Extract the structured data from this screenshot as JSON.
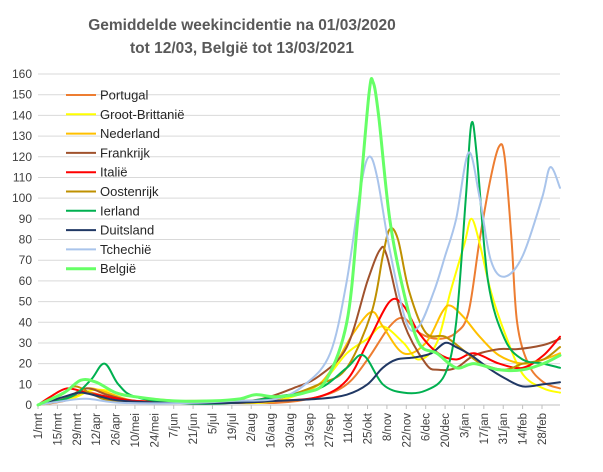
{
  "chart_data": {
    "type": "line",
    "title_line1": "Gemiddelde weekincidentie  na 01/03/2020",
    "title_line2": "tot 12/03, België tot 13/03/2021",
    "xlabel": "",
    "ylabel": "",
    "ylim": [
      0,
      160
    ],
    "y_ticks": [
      0,
      10,
      20,
      30,
      40,
      50,
      60,
      70,
      80,
      90,
      100,
      110,
      120,
      130,
      140,
      150,
      160
    ],
    "x_range": [
      "2020-03-01",
      "2021-03-13"
    ],
    "x_tick_dates": [
      "2020-03-01",
      "2020-03-15",
      "2020-03-29",
      "2020-04-12",
      "2020-04-26",
      "2020-05-10",
      "2020-05-24",
      "2020-06-07",
      "2020-06-21",
      "2020-07-05",
      "2020-07-19",
      "2020-08-02",
      "2020-08-16",
      "2020-08-30",
      "2020-09-13",
      "2020-09-27",
      "2020-10-11",
      "2020-10-25",
      "2020-11-08",
      "2020-11-22",
      "2020-12-06",
      "2020-12-20",
      "2021-01-03",
      "2021-01-17",
      "2021-01-31",
      "2021-02-14",
      "2021-02-28"
    ],
    "x_tick_labels": [
      "1/mrt",
      "15/mrt",
      "29/mrt",
      "12/apr",
      "26/apr",
      "10/mei",
      "24/mei",
      "7/jun",
      "21/jun",
      "5/jul",
      "19/jul",
      "2/aug",
      "16/aug",
      "30/aug",
      "13/sep",
      "27/sep",
      "11/okt",
      "25/okt",
      "8/nov",
      "22/nov",
      "6/dec",
      "20/dec",
      "3/jan",
      "17/jan",
      "31/jan",
      "14/feb",
      "28/feb"
    ],
    "grid": true,
    "legend_position": "top-left",
    "series": [
      {
        "name": "Portugal",
        "color": "#ED7D31",
        "points": [
          [
            "2020-03-01",
            0
          ],
          [
            "2020-03-20",
            2
          ],
          [
            "2020-04-05",
            6
          ],
          [
            "2020-04-20",
            4
          ],
          [
            "2020-05-10",
            2
          ],
          [
            "2020-06-20",
            2
          ],
          [
            "2020-07-15",
            2
          ],
          [
            "2020-08-20",
            1
          ],
          [
            "2020-09-20",
            4
          ],
          [
            "2020-10-10",
            10
          ],
          [
            "2020-10-25",
            22
          ],
          [
            "2020-11-10",
            38
          ],
          [
            "2020-11-20",
            42
          ],
          [
            "2020-12-01",
            35
          ],
          [
            "2020-12-15",
            32
          ],
          [
            "2020-12-28",
            35
          ],
          [
            "2021-01-06",
            45
          ],
          [
            "2021-01-14",
            80
          ],
          [
            "2021-01-22",
            110
          ],
          [
            "2021-01-28",
            125
          ],
          [
            "2021-02-01",
            120
          ],
          [
            "2021-02-06",
            80
          ],
          [
            "2021-02-10",
            40
          ],
          [
            "2021-02-18",
            20
          ],
          [
            "2021-03-01",
            11
          ],
          [
            "2021-03-13",
            8
          ]
        ]
      },
      {
        "name": "Groot-Brittanië",
        "color": "#FFFF00",
        "points": [
          [
            "2020-03-01",
            0
          ],
          [
            "2020-03-25",
            3
          ],
          [
            "2020-04-08",
            7
          ],
          [
            "2020-04-20",
            7
          ],
          [
            "2020-05-10",
            4
          ],
          [
            "2020-06-10",
            2
          ],
          [
            "2020-07-15",
            1
          ],
          [
            "2020-08-20",
            2
          ],
          [
            "2020-09-20",
            10
          ],
          [
            "2020-10-10",
            25
          ],
          [
            "2020-10-25",
            32
          ],
          [
            "2020-11-05",
            38
          ],
          [
            "2020-11-20",
            30
          ],
          [
            "2020-12-01",
            22
          ],
          [
            "2020-12-14",
            30
          ],
          [
            "2020-12-24",
            55
          ],
          [
            "2021-01-03",
            78
          ],
          [
            "2021-01-08",
            90
          ],
          [
            "2021-01-14",
            78
          ],
          [
            "2021-01-22",
            55
          ],
          [
            "2021-02-01",
            35
          ],
          [
            "2021-02-14",
            15
          ],
          [
            "2021-03-01",
            8
          ],
          [
            "2021-03-13",
            6
          ]
        ]
      },
      {
        "name": "Nederland",
        "color": "#FFC000",
        "points": [
          [
            "2020-03-01",
            0
          ],
          [
            "2020-03-20",
            3
          ],
          [
            "2020-04-05",
            8
          ],
          [
            "2020-04-20",
            6
          ],
          [
            "2020-05-10",
            2
          ],
          [
            "2020-06-20",
            1
          ],
          [
            "2020-07-20",
            1
          ],
          [
            "2020-08-15",
            3
          ],
          [
            "2020-09-15",
            8
          ],
          [
            "2020-09-30",
            18
          ],
          [
            "2020-10-15",
            35
          ],
          [
            "2020-10-28",
            45
          ],
          [
            "2020-11-05",
            38
          ],
          [
            "2020-11-20",
            25
          ],
          [
            "2020-12-06",
            30
          ],
          [
            "2020-12-18",
            45
          ],
          [
            "2020-12-24",
            48
          ],
          [
            "2021-01-03",
            42
          ],
          [
            "2021-01-14",
            33
          ],
          [
            "2021-01-28",
            24
          ],
          [
            "2021-02-14",
            20
          ],
          [
            "2021-03-01",
            22
          ],
          [
            "2021-03-13",
            25
          ]
        ]
      },
      {
        "name": "Frankrijk",
        "color": "#A0522D",
        "points": [
          [
            "2020-03-01",
            0
          ],
          [
            "2020-03-20",
            3
          ],
          [
            "2020-04-05",
            8
          ],
          [
            "2020-04-20",
            5
          ],
          [
            "2020-05-10",
            2
          ],
          [
            "2020-06-20",
            1
          ],
          [
            "2020-07-15",
            1
          ],
          [
            "2020-08-10",
            3
          ],
          [
            "2020-09-01",
            8
          ],
          [
            "2020-09-20",
            14
          ],
          [
            "2020-10-10",
            28
          ],
          [
            "2020-10-25",
            60
          ],
          [
            "2020-11-03",
            75
          ],
          [
            "2020-11-08",
            72
          ],
          [
            "2020-11-20",
            40
          ],
          [
            "2020-12-06",
            20
          ],
          [
            "2020-12-15",
            17
          ],
          [
            "2020-12-28",
            18
          ],
          [
            "2021-01-10",
            24
          ],
          [
            "2021-01-28",
            27
          ],
          [
            "2021-02-10",
            27
          ],
          [
            "2021-03-01",
            29
          ],
          [
            "2021-03-13",
            32
          ]
        ]
      },
      {
        "name": "Italië",
        "color": "#FF0000",
        "points": [
          [
            "2020-03-01",
            0
          ],
          [
            "2020-03-10",
            4
          ],
          [
            "2020-03-22",
            8
          ],
          [
            "2020-04-05",
            6
          ],
          [
            "2020-04-20",
            4
          ],
          [
            "2020-05-10",
            2
          ],
          [
            "2020-06-20",
            1
          ],
          [
            "2020-07-20",
            1
          ],
          [
            "2020-08-20",
            2
          ],
          [
            "2020-09-20",
            4
          ],
          [
            "2020-10-10",
            12
          ],
          [
            "2020-10-25",
            30
          ],
          [
            "2020-11-10",
            50
          ],
          [
            "2020-11-20",
            48
          ],
          [
            "2020-12-01",
            35
          ],
          [
            "2020-12-15",
            25
          ],
          [
            "2020-12-28",
            22
          ],
          [
            "2021-01-10",
            25
          ],
          [
            "2021-01-28",
            20
          ],
          [
            "2021-02-14",
            18
          ],
          [
            "2021-03-01",
            24
          ],
          [
            "2021-03-13",
            33
          ]
        ]
      },
      {
        "name": "Oostenrijk",
        "color": "#BF9000",
        "points": [
          [
            "2020-03-01",
            0
          ],
          [
            "2020-03-18",
            5
          ],
          [
            "2020-03-28",
            9
          ],
          [
            "2020-04-10",
            5
          ],
          [
            "2020-04-25",
            2
          ],
          [
            "2020-06-10",
            1
          ],
          [
            "2020-07-20",
            2
          ],
          [
            "2020-08-20",
            3
          ],
          [
            "2020-09-20",
            10
          ],
          [
            "2020-10-10",
            18
          ],
          [
            "2020-10-28",
            45
          ],
          [
            "2020-11-05",
            72
          ],
          [
            "2020-11-10",
            85
          ],
          [
            "2020-11-16",
            80
          ],
          [
            "2020-11-24",
            55
          ],
          [
            "2020-12-06",
            35
          ],
          [
            "2020-12-20",
            33
          ],
          [
            "2021-01-03",
            26
          ],
          [
            "2021-01-15",
            20
          ],
          [
            "2021-02-01",
            17
          ],
          [
            "2021-02-14",
            20
          ],
          [
            "2021-03-01",
            22
          ],
          [
            "2021-03-13",
            28
          ]
        ]
      },
      {
        "name": "Ierland",
        "color": "#00B050",
        "points": [
          [
            "2020-03-01",
            0
          ],
          [
            "2020-03-25",
            4
          ],
          [
            "2020-04-08",
            12
          ],
          [
            "2020-04-18",
            20
          ],
          [
            "2020-04-28",
            10
          ],
          [
            "2020-05-10",
            4
          ],
          [
            "2020-06-10",
            1
          ],
          [
            "2020-07-20",
            1
          ],
          [
            "2020-08-20",
            4
          ],
          [
            "2020-09-20",
            8
          ],
          [
            "2020-10-10",
            18
          ],
          [
            "2020-10-22",
            24
          ],
          [
            "2020-11-05",
            10
          ],
          [
            "2020-11-20",
            6
          ],
          [
            "2020-12-06",
            7
          ],
          [
            "2020-12-20",
            15
          ],
          [
            "2020-12-28",
            40
          ],
          [
            "2021-01-04",
            100
          ],
          [
            "2021-01-08",
            136
          ],
          [
            "2021-01-12",
            120
          ],
          [
            "2021-01-20",
            60
          ],
          [
            "2021-02-01",
            32
          ],
          [
            "2021-02-14",
            22
          ],
          [
            "2021-03-01",
            20
          ],
          [
            "2021-03-13",
            18
          ]
        ]
      },
      {
        "name": "Duitsland",
        "color": "#203864",
        "points": [
          [
            "2020-03-01",
            0
          ],
          [
            "2020-03-20",
            4
          ],
          [
            "2020-04-01",
            6
          ],
          [
            "2020-04-15",
            4
          ],
          [
            "2020-05-01",
            2
          ],
          [
            "2020-06-10",
            1
          ],
          [
            "2020-07-20",
            1
          ],
          [
            "2020-08-20",
            2
          ],
          [
            "2020-09-20",
            3
          ],
          [
            "2020-10-10",
            5
          ],
          [
            "2020-10-25",
            10
          ],
          [
            "2020-11-05",
            18
          ],
          [
            "2020-11-15",
            22
          ],
          [
            "2020-11-28",
            23
          ],
          [
            "2020-12-10",
            25
          ],
          [
            "2020-12-20",
            30
          ],
          [
            "2020-12-28",
            28
          ],
          [
            "2021-01-08",
            24
          ],
          [
            "2021-01-20",
            18
          ],
          [
            "2021-02-01",
            13
          ],
          [
            "2021-02-14",
            9
          ],
          [
            "2021-03-01",
            10
          ],
          [
            "2021-03-13",
            11
          ]
        ]
      },
      {
        "name": "Tchechië",
        "color": "#A9C4EB",
        "points": [
          [
            "2020-03-01",
            0
          ],
          [
            "2020-03-20",
            2
          ],
          [
            "2020-04-05",
            3
          ],
          [
            "2020-05-01",
            1
          ],
          [
            "2020-06-20",
            1
          ],
          [
            "2020-07-20",
            2
          ],
          [
            "2020-08-20",
            3
          ],
          [
            "2020-09-10",
            10
          ],
          [
            "2020-09-28",
            25
          ],
          [
            "2020-10-10",
            60
          ],
          [
            "2020-10-20",
            105
          ],
          [
            "2020-10-26",
            120
          ],
          [
            "2020-11-01",
            110
          ],
          [
            "2020-11-10",
            75
          ],
          [
            "2020-11-22",
            40
          ],
          [
            "2020-12-01",
            38
          ],
          [
            "2020-12-12",
            55
          ],
          [
            "2020-12-20",
            72
          ],
          [
            "2020-12-28",
            90
          ],
          [
            "2021-01-06",
            122
          ],
          [
            "2021-01-14",
            100
          ],
          [
            "2021-01-22",
            70
          ],
          [
            "2021-02-01",
            62
          ],
          [
            "2021-02-14",
            72
          ],
          [
            "2021-02-28",
            100
          ],
          [
            "2021-03-06",
            115
          ],
          [
            "2021-03-13",
            105
          ]
        ]
      },
      {
        "name": "België",
        "color": "#66FF66",
        "points": [
          [
            "2020-03-01",
            0
          ],
          [
            "2020-03-20",
            6
          ],
          [
            "2020-04-01",
            12
          ],
          [
            "2020-04-12",
            11
          ],
          [
            "2020-04-26",
            6
          ],
          [
            "2020-05-10",
            4
          ],
          [
            "2020-06-07",
            2
          ],
          [
            "2020-07-05",
            2
          ],
          [
            "2020-07-25",
            3
          ],
          [
            "2020-08-05",
            5
          ],
          [
            "2020-08-20",
            4
          ],
          [
            "2020-09-10",
            6
          ],
          [
            "2020-09-25",
            12
          ],
          [
            "2020-10-10",
            40
          ],
          [
            "2020-10-18",
            90
          ],
          [
            "2020-10-26",
            150
          ],
          [
            "2020-10-29",
            156
          ],
          [
            "2020-11-02",
            140
          ],
          [
            "2020-11-10",
            90
          ],
          [
            "2020-11-20",
            55
          ],
          [
            "2020-12-01",
            30
          ],
          [
            "2020-12-14",
            25
          ],
          [
            "2020-12-28",
            18
          ],
          [
            "2021-01-10",
            20
          ],
          [
            "2021-01-28",
            17
          ],
          [
            "2021-02-14",
            17
          ],
          [
            "2021-03-01",
            20
          ],
          [
            "2021-03-13",
            24
          ]
        ]
      }
    ]
  }
}
